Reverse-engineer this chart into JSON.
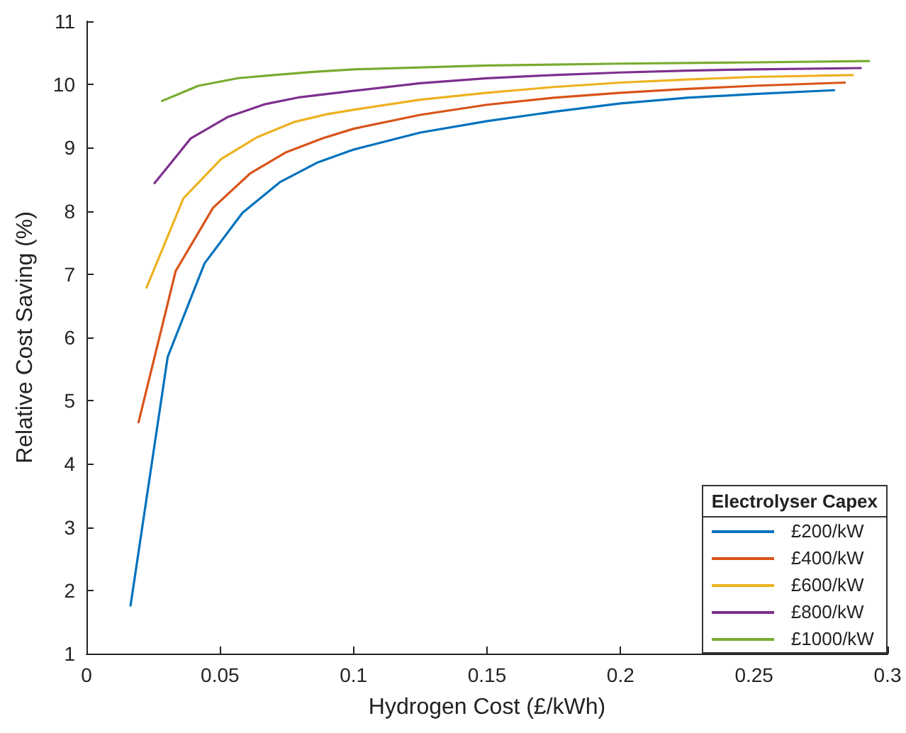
{
  "chart_data": {
    "type": "line",
    "xlabel": "Hydrogen Cost (£/kWh)",
    "ylabel": "Relative Cost Saving (%)",
    "legend_title": "Electrolyser Capex",
    "legend": "bottom right",
    "grid": false,
    "marker": "none",
    "line_style": "solid",
    "xlim": [
      0,
      0.3
    ],
    "xticks": [
      0,
      0.05,
      0.1,
      0.15,
      0.2,
      0.25,
      0.3
    ],
    "ylim": [
      1,
      11
    ],
    "yticks": [
      1,
      2,
      3,
      4,
      5,
      6,
      7,
      8,
      9,
      10,
      11
    ],
    "series": [
      {
        "name": "£200/kW",
        "color": "#0072bd",
        "x": [
          0.0165,
          0.0304,
          0.0442,
          0.0584,
          0.0726,
          0.0867,
          0.1,
          0.125,
          0.15,
          0.175,
          0.2,
          0.225,
          0.25,
          0.28
        ],
        "values": [
          1.76,
          5.69,
          7.17,
          7.97,
          8.46,
          8.77,
          8.97,
          9.24,
          9.42,
          9.57,
          9.7,
          9.79,
          9.85,
          9.91
        ]
      },
      {
        "name": "£400/kW",
        "color": "#d95319",
        "x": [
          0.0195,
          0.0334,
          0.0474,
          0.0612,
          0.0748,
          0.0885,
          0.1,
          0.125,
          0.15,
          0.175,
          0.2,
          0.225,
          0.25,
          0.284
        ],
        "values": [
          4.66,
          7.05,
          8.05,
          8.59,
          8.93,
          9.15,
          9.3,
          9.52,
          9.68,
          9.79,
          9.87,
          9.93,
          9.98,
          10.03
        ]
      },
      {
        "name": "£600/kW",
        "color": "#edb120",
        "x": [
          0.0225,
          0.0363,
          0.0504,
          0.0641,
          0.078,
          0.09,
          0.1,
          0.125,
          0.15,
          0.175,
          0.2,
          0.225,
          0.25,
          0.287
        ],
        "values": [
          6.79,
          8.2,
          8.82,
          9.17,
          9.41,
          9.53,
          9.6,
          9.76,
          9.87,
          9.96,
          10.03,
          10.08,
          10.12,
          10.15
        ]
      },
      {
        "name": "£800/kW",
        "color": "#7e2f8e",
        "x": [
          0.0255,
          0.0391,
          0.0531,
          0.067,
          0.08,
          0.1,
          0.125,
          0.15,
          0.175,
          0.2,
          0.225,
          0.25,
          0.29
        ],
        "values": [
          8.44,
          9.15,
          9.49,
          9.69,
          9.8,
          9.9,
          10.02,
          10.1,
          10.15,
          10.19,
          10.22,
          10.24,
          10.26
        ]
      },
      {
        "name": "£1000/kW",
        "color": "#77ac30",
        "x": [
          0.0283,
          0.0419,
          0.0568,
          0.07,
          0.085,
          0.1,
          0.125,
          0.15,
          0.2,
          0.25,
          0.293
        ],
        "values": [
          9.74,
          9.98,
          10.1,
          10.15,
          10.2,
          10.24,
          10.27,
          10.3,
          10.33,
          10.35,
          10.37
        ]
      }
    ]
  }
}
